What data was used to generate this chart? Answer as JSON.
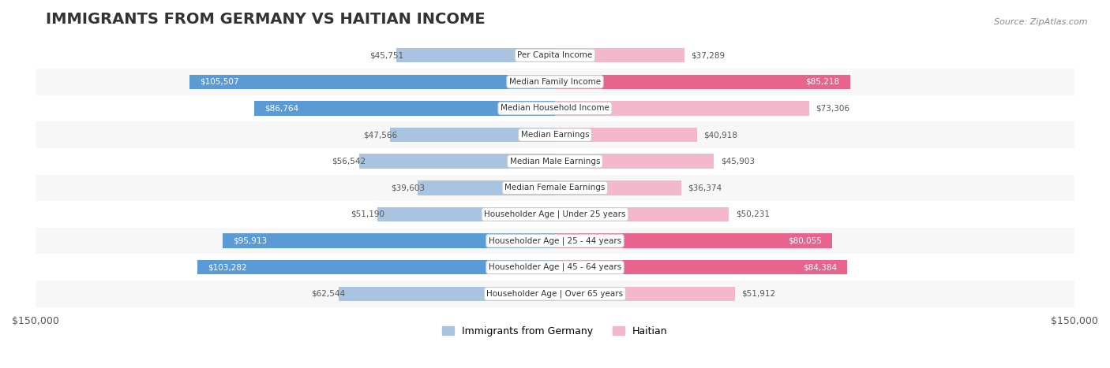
{
  "title": "IMMIGRANTS FROM GERMANY VS HAITIAN INCOME",
  "source": "Source: ZipAtlas.com",
  "categories": [
    "Per Capita Income",
    "Median Family Income",
    "Median Household Income",
    "Median Earnings",
    "Median Male Earnings",
    "Median Female Earnings",
    "Householder Age | Under 25 years",
    "Householder Age | 25 - 44 years",
    "Householder Age | 45 - 64 years",
    "Householder Age | Over 65 years"
  ],
  "germany_values": [
    45751,
    105507,
    86764,
    47566,
    56542,
    39603,
    51190,
    95913,
    103282,
    62544
  ],
  "haitian_values": [
    37289,
    85218,
    73306,
    40918,
    45903,
    36374,
    50231,
    80055,
    84384,
    51912
  ],
  "germany_labels": [
    "$45,751",
    "$105,507",
    "$86,764",
    "$47,566",
    "$56,542",
    "$39,603",
    "$51,190",
    "$95,913",
    "$103,282",
    "$62,544"
  ],
  "haitian_labels": [
    "$37,289",
    "$85,218",
    "$73,306",
    "$40,918",
    "$45,903",
    "$36,374",
    "$50,231",
    "$80,055",
    "$84,384",
    "$51,912"
  ],
  "xlim": 150000,
  "color_germany_light": "#a8c4e0",
  "color_germany_dark": "#5b9bd5",
  "color_haitian_light": "#f4b8cc",
  "color_haitian_dark": "#e8648c",
  "bar_height": 0.55,
  "bg_row_color": "#f0f0f0",
  "label_color": "#555555",
  "title_fontsize": 14,
  "legend_label_germany": "Immigrants from Germany",
  "legend_label_haitian": "Haitian",
  "threshold": 75000
}
